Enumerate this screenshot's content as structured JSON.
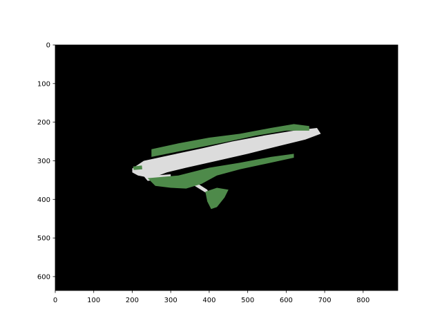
{
  "chart_data": {
    "type": "heatmap",
    "title": "",
    "xlabel": "",
    "ylabel": "",
    "image_extent": {
      "width": 890,
      "height": 636
    },
    "xlim": [
      0,
      890
    ],
    "ylim": [
      636,
      0
    ],
    "y_axis_inverted": true,
    "grid": false,
    "x_ticks": [
      0,
      100,
      200,
      300,
      400,
      500,
      600,
      700,
      800
    ],
    "y_ticks": [
      0,
      100,
      200,
      300,
      400,
      500,
      600
    ],
    "x_tick_labels": [
      "0",
      "100",
      "200",
      "300",
      "400",
      "500",
      "600",
      "700",
      "800"
    ],
    "y_tick_labels": [
      "0",
      "100",
      "200",
      "300",
      "400",
      "500",
      "600"
    ],
    "colors": {
      "background": "#000000",
      "free_space": "#dcdcdc",
      "vegetation": "#4e8a4a"
    },
    "regions": [
      {
        "class": "free_space",
        "polygon": [
          [
            200,
            320
          ],
          [
            230,
            300
          ],
          [
            300,
            285
          ],
          [
            380,
            268
          ],
          [
            460,
            250
          ],
          [
            540,
            235
          ],
          [
            620,
            222
          ],
          [
            680,
            215
          ],
          [
            690,
            230
          ],
          [
            650,
            245
          ],
          [
            580,
            262
          ],
          [
            500,
            282
          ],
          [
            420,
            300
          ],
          [
            340,
            318
          ],
          [
            290,
            330
          ],
          [
            250,
            345
          ],
          [
            215,
            338
          ],
          [
            200,
            330
          ]
        ]
      },
      {
        "class": "free_space",
        "polygon": [
          [
            230,
            340
          ],
          [
            300,
            335
          ],
          [
            300,
            345
          ],
          [
            240,
            352
          ]
        ]
      },
      {
        "class": "free_space",
        "polygon": [
          [
            330,
            345
          ],
          [
            340,
            340
          ],
          [
            395,
            375
          ],
          [
            400,
            385
          ],
          [
            390,
            382
          ]
        ]
      },
      {
        "class": "vegetation",
        "polygon": [
          [
            250,
            270
          ],
          [
            320,
            255
          ],
          [
            400,
            240
          ],
          [
            480,
            230
          ],
          [
            560,
            215
          ],
          [
            620,
            205
          ],
          [
            660,
            210
          ],
          [
            660,
            222
          ],
          [
            600,
            222
          ],
          [
            520,
            235
          ],
          [
            440,
            252
          ],
          [
            360,
            268
          ],
          [
            290,
            282
          ],
          [
            250,
            290
          ]
        ]
      },
      {
        "class": "vegetation",
        "polygon": [
          [
            240,
            345
          ],
          [
            320,
            338
          ],
          [
            400,
            318
          ],
          [
            480,
            305
          ],
          [
            560,
            290
          ],
          [
            620,
            282
          ],
          [
            620,
            292
          ],
          [
            560,
            305
          ],
          [
            480,
            322
          ],
          [
            420,
            338
          ],
          [
            380,
            360
          ],
          [
            340,
            372
          ],
          [
            300,
            370
          ],
          [
            260,
            365
          ]
        ]
      },
      {
        "class": "vegetation",
        "polygon": [
          [
            390,
            380
          ],
          [
            420,
            370
          ],
          [
            450,
            375
          ],
          [
            440,
            395
          ],
          [
            420,
            420
          ],
          [
            405,
            425
          ],
          [
            395,
            405
          ]
        ]
      },
      {
        "class": "vegetation",
        "polygon": [
          [
            202,
            315
          ],
          [
            225,
            312
          ],
          [
            226,
            322
          ],
          [
            204,
            324
          ]
        ]
      },
      {
        "class": "vegetation",
        "polygon": [
          [
            320,
            350
          ],
          [
            345,
            348
          ],
          [
            346,
            362
          ],
          [
            322,
            364
          ]
        ]
      }
    ]
  }
}
